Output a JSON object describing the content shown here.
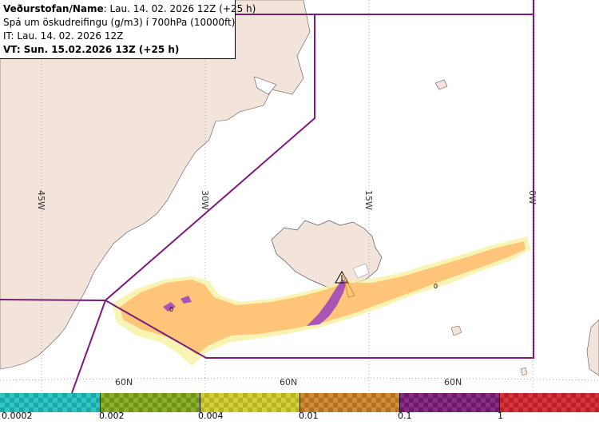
{
  "header": {
    "line1_label": "Veðurstofan/Name",
    "line1_value": ": Lau. 14. 02. 2026 12Z (+25 h)",
    "line2": "Spá um öskudreifingu (g/m3) í 700hPa (10000ft)",
    "line3": "IT: Lau. 14. 02. 2026 12Z",
    "line4": "VT: Sun. 15.02.2026 13Z (+25 h)"
  },
  "map": {
    "longitude_labels": [
      "45W",
      "30W",
      "15W",
      "0W"
    ],
    "latitude_labels": [
      "60N",
      "60N",
      "60N"
    ],
    "contour_labels": [
      "0",
      "0"
    ],
    "colors": {
      "sea": "#ffffff",
      "land": "#f2e4da",
      "boundary": "#7a1a7a",
      "plume_low": "#fec57a",
      "plume_high": "#a855b6",
      "plume_edge": "#f6f09a"
    }
  },
  "legend": {
    "segments": [
      {
        "color": "#2fc6c4",
        "alt": "#1da8a8"
      },
      {
        "color": "#8fae2c",
        "alt": "#6f9418"
      },
      {
        "color": "#d3cf38",
        "alt": "#b8b420"
      },
      {
        "color": "#d08e3a",
        "alt": "#b47020"
      },
      {
        "color": "#8a2e85",
        "alt": "#6e1a6a"
      },
      {
        "color": "#d9343a",
        "alt": "#b8202a"
      }
    ],
    "ticks": [
      "0.0002",
      "0.002",
      "0.004",
      "0.01",
      "0.1",
      "1"
    ]
  }
}
